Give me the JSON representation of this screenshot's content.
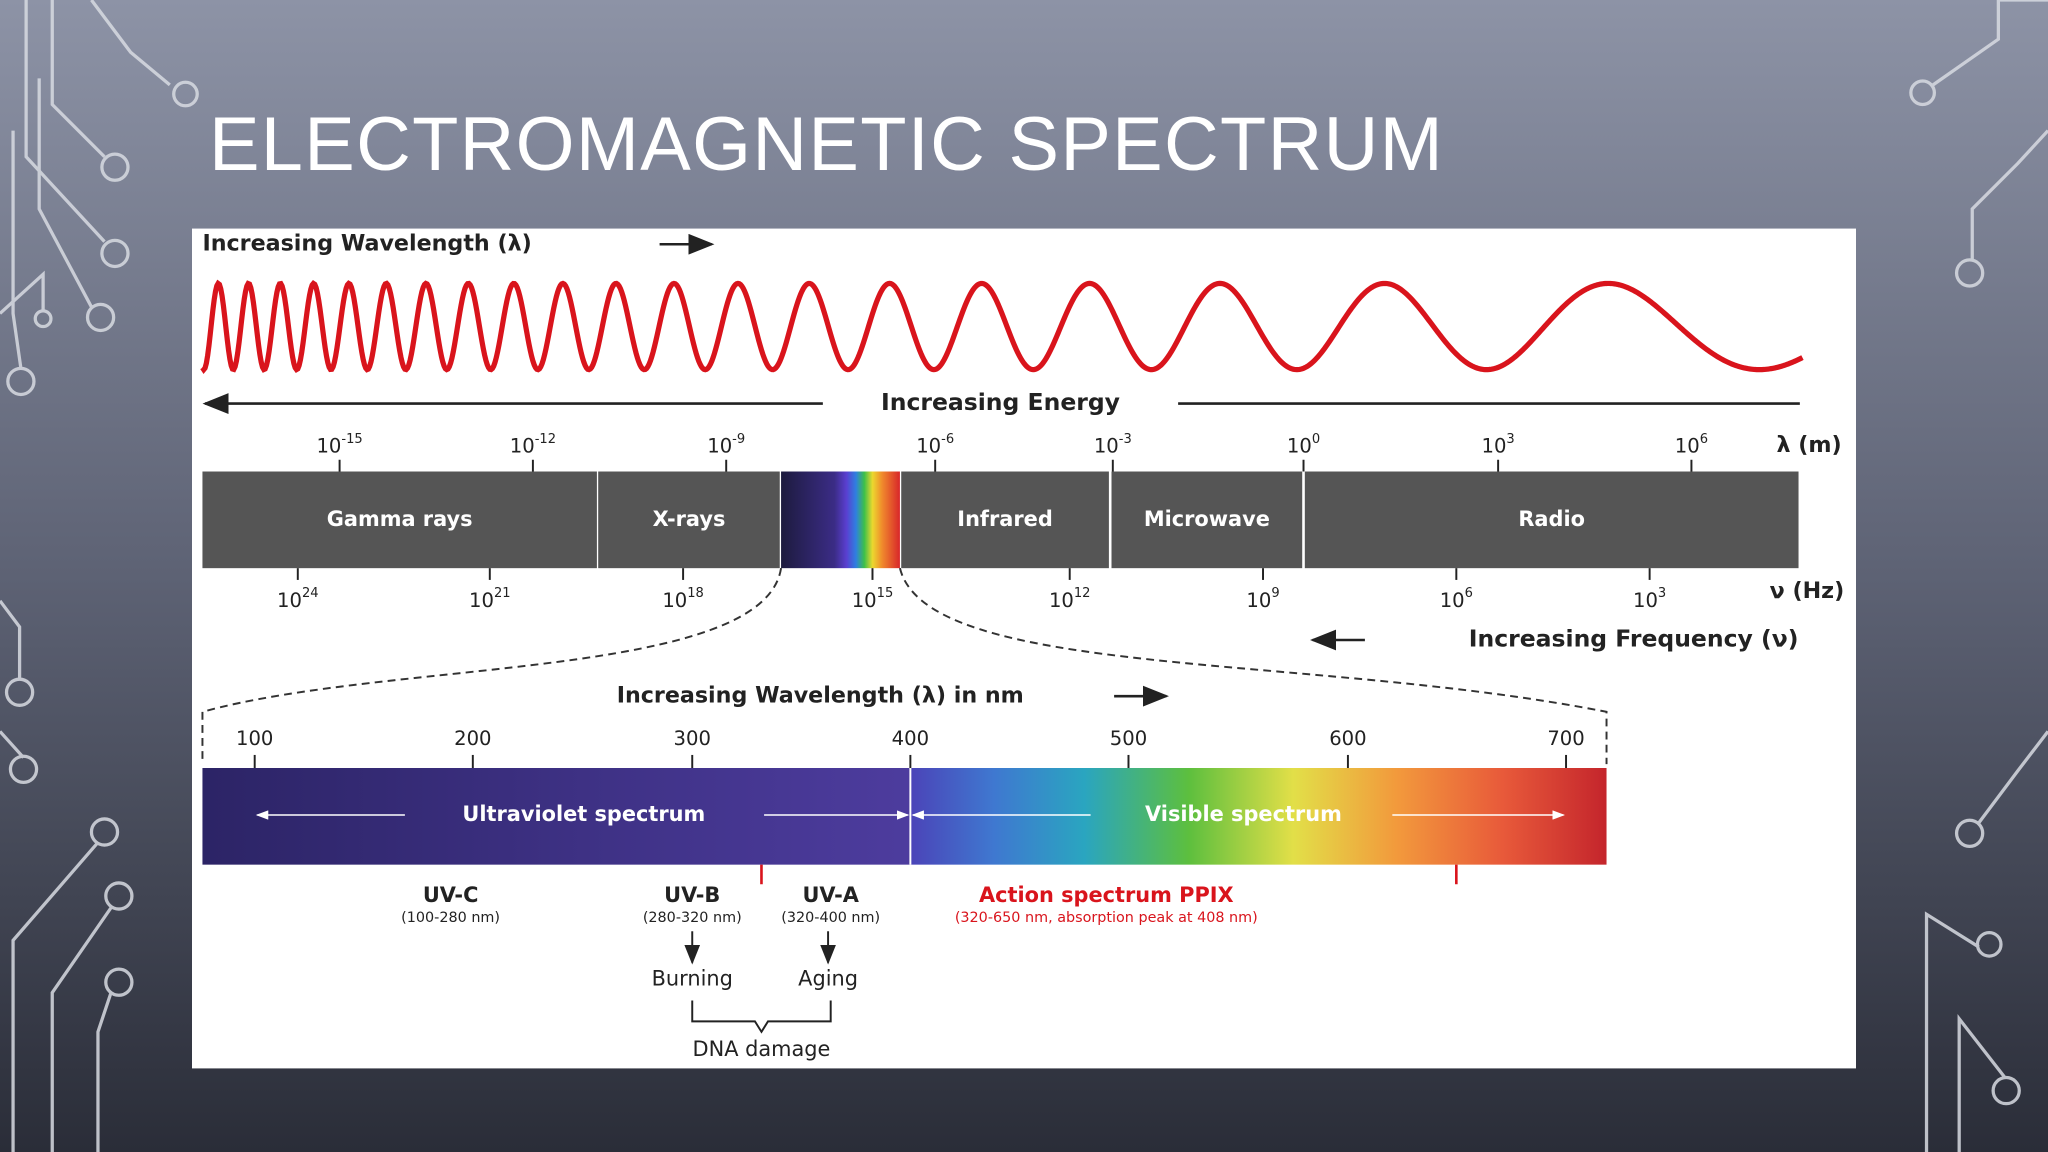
{
  "title": "ELECTROMAGNETIC SPECTRUM",
  "diagram": {
    "wavelength_label": "Increasing Wavelength (λ)",
    "energy_label": "Increasing Energy",
    "wavelength_unit": "λ (m)",
    "wavelength_ticks": [
      {
        "base": "10",
        "exp": "-15"
      },
      {
        "base": "10",
        "exp": "-12"
      },
      {
        "base": "10",
        "exp": "-9"
      },
      {
        "base": "10",
        "exp": "-6"
      },
      {
        "base": "10",
        "exp": "-3"
      },
      {
        "base": "10",
        "exp": "0"
      },
      {
        "base": "10",
        "exp": "3"
      },
      {
        "base": "10",
        "exp": "6"
      }
    ],
    "bands": [
      "Gamma rays",
      "X-rays",
      "Infrared",
      "Microwave",
      "Radio"
    ],
    "frequency_unit": "ν (Hz)",
    "frequency_ticks": [
      {
        "base": "10",
        "exp": "24"
      },
      {
        "base": "10",
        "exp": "21"
      },
      {
        "base": "10",
        "exp": "18"
      },
      {
        "base": "10",
        "exp": "15"
      },
      {
        "base": "10",
        "exp": "12"
      },
      {
        "base": "10",
        "exp": "9"
      },
      {
        "base": "10",
        "exp": "6"
      },
      {
        "base": "10",
        "exp": "3"
      }
    ],
    "frequency_label": "Increasing Frequency (ν)",
    "nm_label": "Increasing Wavelength (λ) in nm",
    "nm_ticks": [
      100,
      200,
      300,
      400,
      500,
      600,
      700
    ],
    "uv_label": "Ultraviolet spectrum",
    "visible_label": "Visible spectrum",
    "uv_bands": [
      {
        "name": "UV-C",
        "range": "(100-280 nm)"
      },
      {
        "name": "UV-B",
        "range": "(280-320 nm)"
      },
      {
        "name": "UV-A",
        "range": "(320-400 nm)"
      }
    ],
    "action_spectrum": {
      "name": "Action spectrum PPIX",
      "note": "(320-650 nm, absorption peak at 408 nm)"
    },
    "effects": [
      "Burning",
      "Aging"
    ],
    "effect_result": "DNA damage"
  }
}
